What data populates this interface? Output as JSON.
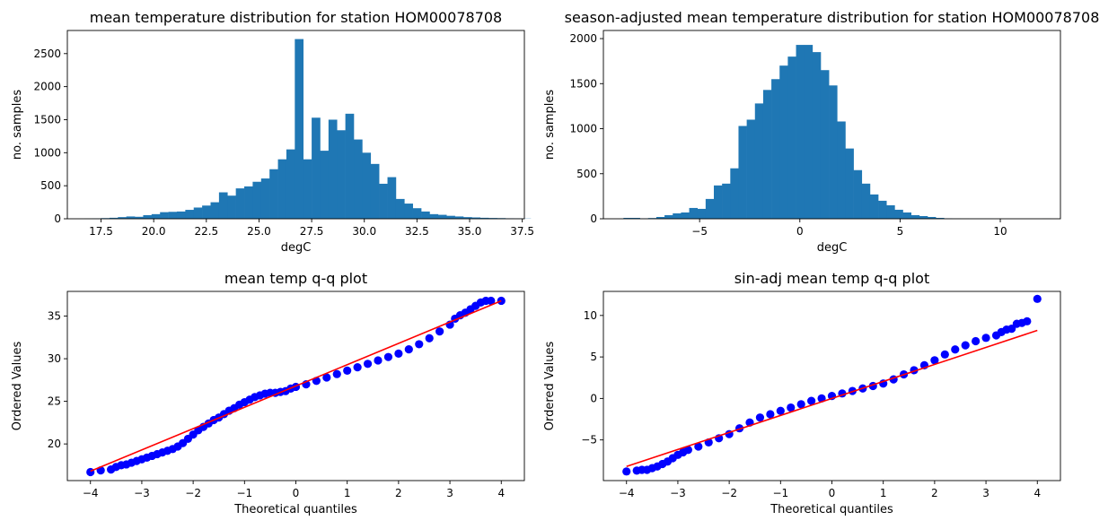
{
  "chart_data": [
    {
      "type": "bar",
      "title": "mean temperature distribution for station HOM00078708",
      "xlabel": "degC",
      "ylabel": "no. samples",
      "xlim": [
        15.9,
        37.6
      ],
      "ylim": [
        0,
        2850
      ],
      "xticks": [
        17.5,
        20.0,
        22.5,
        25.0,
        27.5,
        30.0,
        32.5,
        35.0,
        37.5
      ],
      "xtick_labels": [
        "17.5",
        "20.0",
        "22.5",
        "25.0",
        "27.5",
        "30.0",
        "32.5",
        "35.0",
        "37.5"
      ],
      "yticks": [
        0,
        500,
        1000,
        1500,
        2000,
        2500
      ],
      "ytick_labels": [
        "0",
        "500",
        "1000",
        "1500",
        "2000",
        "2500"
      ],
      "bin_start": 16.7,
      "bin_width": 0.4,
      "values": [
        3,
        5,
        10,
        15,
        25,
        35,
        30,
        55,
        70,
        100,
        105,
        110,
        135,
        170,
        200,
        250,
        400,
        350,
        460,
        490,
        560,
        610,
        750,
        900,
        1050,
        2720,
        900,
        1530,
        1030,
        1500,
        1340,
        1590,
        1200,
        1000,
        830,
        530,
        630,
        300,
        230,
        160,
        110,
        70,
        60,
        45,
        35,
        25,
        20,
        15,
        12,
        10,
        7,
        5,
        3
      ],
      "color": "#1f77b4"
    },
    {
      "type": "bar",
      "title": "season-adjusted mean temperature distribution for station HOM00078708",
      "xlabel": "degC",
      "ylabel": "no. samples",
      "xlim": [
        -9.8,
        13.0
      ],
      "ylim": [
        0,
        2090
      ],
      "xticks": [
        -5,
        0,
        5,
        10
      ],
      "xtick_labels": [
        "−5",
        "0",
        "5",
        "10"
      ],
      "yticks": [
        0,
        500,
        1000,
        1500,
        2000
      ],
      "ytick_labels": [
        "0",
        "500",
        "1000",
        "1500",
        "2000"
      ],
      "bin_start": -8.8,
      "bin_width": 0.41,
      "values": [
        10,
        10,
        5,
        8,
        20,
        40,
        60,
        70,
        120,
        110,
        220,
        370,
        390,
        560,
        1030,
        1100,
        1280,
        1430,
        1550,
        1700,
        1800,
        1930,
        1930,
        1850,
        1650,
        1480,
        1080,
        780,
        540,
        390,
        270,
        200,
        150,
        100,
        70,
        40,
        30,
        20,
        10,
        5,
        3,
        2,
        1,
        1,
        1,
        0,
        0,
        0,
        0,
        0,
        0,
        2
      ],
      "color": "#1f77b4"
    },
    {
      "type": "scatter",
      "title": "mean temp q-q plot",
      "xlabel": "Theoretical quantiles",
      "ylabel": "Ordered Values",
      "xlim": [
        -4.45,
        4.45
      ],
      "ylim": [
        15.7,
        37.9
      ],
      "xticks": [
        -4,
        -3,
        -2,
        -1,
        0,
        1,
        2,
        3,
        4
      ],
      "xtick_labels": [
        "−4",
        "−3",
        "−2",
        "−1",
        "0",
        "1",
        "2",
        "3",
        "4"
      ],
      "yticks": [
        20,
        25,
        30,
        35
      ],
      "ytick_labels": [
        "20",
        "25",
        "30",
        "35"
      ],
      "points": [
        [
          -4.0,
          16.7
        ],
        [
          -3.8,
          16.9
        ],
        [
          -3.6,
          17.0
        ],
        [
          -3.5,
          17.3
        ],
        [
          -3.4,
          17.5
        ],
        [
          -3.3,
          17.6
        ],
        [
          -3.2,
          17.8
        ],
        [
          -3.1,
          18.0
        ],
        [
          -3.0,
          18.2
        ],
        [
          -2.9,
          18.4
        ],
        [
          -2.8,
          18.6
        ],
        [
          -2.7,
          18.8
        ],
        [
          -2.6,
          19.0
        ],
        [
          -2.5,
          19.2
        ],
        [
          -2.4,
          19.4
        ],
        [
          -2.3,
          19.7
        ],
        [
          -2.2,
          20.1
        ],
        [
          -2.1,
          20.6
        ],
        [
          -2.0,
          21.1
        ],
        [
          -1.9,
          21.6
        ],
        [
          -1.8,
          22.0
        ],
        [
          -1.7,
          22.4
        ],
        [
          -1.6,
          22.8
        ],
        [
          -1.5,
          23.1
        ],
        [
          -1.4,
          23.5
        ],
        [
          -1.3,
          23.9
        ],
        [
          -1.2,
          24.2
        ],
        [
          -1.1,
          24.6
        ],
        [
          -1.0,
          24.9
        ],
        [
          -0.9,
          25.2
        ],
        [
          -0.8,
          25.5
        ],
        [
          -0.7,
          25.7
        ],
        [
          -0.6,
          25.9
        ],
        [
          -0.5,
          26.0
        ],
        [
          -0.4,
          26.0
        ],
        [
          -0.3,
          26.1
        ],
        [
          -0.2,
          26.2
        ],
        [
          -0.1,
          26.5
        ],
        [
          0.0,
          26.7
        ],
        [
          0.2,
          27.0
        ],
        [
          0.4,
          27.4
        ],
        [
          0.6,
          27.8
        ],
        [
          0.8,
          28.2
        ],
        [
          1.0,
          28.6
        ],
        [
          1.2,
          29.0
        ],
        [
          1.4,
          29.4
        ],
        [
          1.6,
          29.8
        ],
        [
          1.8,
          30.2
        ],
        [
          2.0,
          30.6
        ],
        [
          2.2,
          31.1
        ],
        [
          2.4,
          31.7
        ],
        [
          2.6,
          32.4
        ],
        [
          2.8,
          33.2
        ],
        [
          3.0,
          34.0
        ],
        [
          3.1,
          34.7
        ],
        [
          3.2,
          35.1
        ],
        [
          3.3,
          35.4
        ],
        [
          3.4,
          35.8
        ],
        [
          3.5,
          36.2
        ],
        [
          3.6,
          36.6
        ],
        [
          3.7,
          36.8
        ],
        [
          3.8,
          36.8
        ],
        [
          4.0,
          36.8
        ]
      ],
      "fit_line": [
        [
          -4.0,
          16.8
        ],
        [
          4.0,
          36.8
        ]
      ],
      "point_color": "#0000ff",
      "line_color": "#ff0000"
    },
    {
      "type": "scatter",
      "title": "sin-adj mean temp q-q plot",
      "xlabel": "Theoretical quantiles",
      "ylabel": "Ordered Values",
      "xlim": [
        -4.45,
        4.45
      ],
      "ylim": [
        -9.9,
        12.9
      ],
      "xticks": [
        -4,
        -3,
        -2,
        -1,
        0,
        1,
        2,
        3,
        4
      ],
      "xtick_labels": [
        "−4",
        "−3",
        "−2",
        "−1",
        "0",
        "1",
        "2",
        "3",
        "4"
      ],
      "yticks": [
        -5,
        0,
        5,
        10
      ],
      "ytick_labels": [
        "−5",
        "0",
        "5",
        "10"
      ],
      "points": [
        [
          -4.0,
          -8.8
        ],
        [
          -3.8,
          -8.7
        ],
        [
          -3.7,
          -8.6
        ],
        [
          -3.6,
          -8.6
        ],
        [
          -3.5,
          -8.4
        ],
        [
          -3.4,
          -8.2
        ],
        [
          -3.3,
          -7.9
        ],
        [
          -3.2,
          -7.6
        ],
        [
          -3.1,
          -7.2
        ],
        [
          -3.0,
          -6.8
        ],
        [
          -2.9,
          -6.5
        ],
        [
          -2.8,
          -6.2
        ],
        [
          -2.6,
          -5.8
        ],
        [
          -2.4,
          -5.3
        ],
        [
          -2.2,
          -4.8
        ],
        [
          -2.0,
          -4.3
        ],
        [
          -1.8,
          -3.6
        ],
        [
          -1.6,
          -2.9
        ],
        [
          -1.4,
          -2.3
        ],
        [
          -1.2,
          -1.9
        ],
        [
          -1.0,
          -1.5
        ],
        [
          -0.8,
          -1.1
        ],
        [
          -0.6,
          -0.7
        ],
        [
          -0.4,
          -0.3
        ],
        [
          -0.2,
          0.0
        ],
        [
          0.0,
          0.3
        ],
        [
          0.2,
          0.6
        ],
        [
          0.4,
          0.9
        ],
        [
          0.6,
          1.2
        ],
        [
          0.8,
          1.5
        ],
        [
          1.0,
          1.8
        ],
        [
          1.2,
          2.3
        ],
        [
          1.4,
          2.9
        ],
        [
          1.6,
          3.4
        ],
        [
          1.8,
          4.0
        ],
        [
          2.0,
          4.6
        ],
        [
          2.2,
          5.3
        ],
        [
          2.4,
          5.9
        ],
        [
          2.6,
          6.4
        ],
        [
          2.8,
          6.9
        ],
        [
          3.0,
          7.3
        ],
        [
          3.2,
          7.6
        ],
        [
          3.3,
          8.0
        ],
        [
          3.4,
          8.3
        ],
        [
          3.5,
          8.4
        ],
        [
          3.6,
          9.0
        ],
        [
          3.7,
          9.1
        ],
        [
          3.8,
          9.3
        ],
        [
          4.0,
          12.0
        ]
      ],
      "fit_line": [
        [
          -4.0,
          -8.2
        ],
        [
          4.0,
          8.2
        ]
      ],
      "point_color": "#0000ff",
      "line_color": "#ff0000"
    }
  ]
}
